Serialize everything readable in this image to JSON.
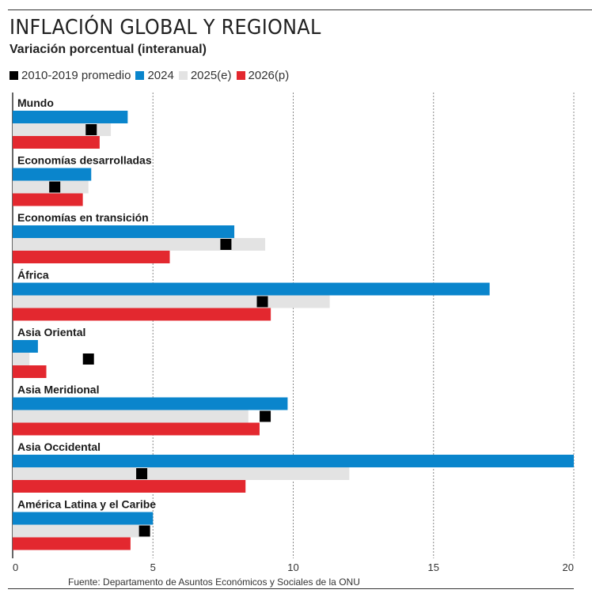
{
  "header": {
    "title": "INFLACIÓN GLOBAL Y REGIONAL",
    "subtitle": "Variación porcentual (interanual)"
  },
  "footer": {
    "source": "Fuente: Departamento de Asuntos Económicos y Sociales de la ONU"
  },
  "chart_data": {
    "type": "bar",
    "orientation": "horizontal",
    "title": "INFLACIÓN GLOBAL Y REGIONAL",
    "subtitle": "Variación porcentual (interanual)",
    "xlabel": "",
    "ylabel": "",
    "xlim": [
      0,
      20
    ],
    "xticks": [
      0,
      5,
      10,
      15,
      20
    ],
    "grid": true,
    "legend_position": "top-left",
    "categories": [
      "Mundo",
      "Economías desarrolladas",
      "Economías en transición",
      "África",
      "Asia Oriental",
      "Asia Meridional",
      "Asia Occidental",
      "América Latina y el Caribe"
    ],
    "series": [
      {
        "name": "2024",
        "color": "#0a85cc",
        "mark": "bar",
        "values": [
          4.1,
          2.8,
          7.9,
          17.0,
          0.9,
          9.8,
          20.0,
          5.0
        ]
      },
      {
        "name": "2025(e)",
        "color": "#e3e3e3",
        "mark": "bar",
        "values": [
          3.5,
          2.7,
          9.0,
          11.3,
          0.6,
          8.4,
          12.0,
          4.9
        ]
      },
      {
        "name": "2026(p)",
        "color": "#e3282f",
        "mark": "bar",
        "values": [
          3.1,
          2.5,
          5.6,
          9.2,
          1.2,
          8.8,
          8.3,
          4.2
        ]
      },
      {
        "name": "2010-2019 promedio",
        "color": "#000000",
        "mark": "square",
        "values": [
          2.8,
          1.5,
          7.6,
          8.9,
          2.7,
          9.0,
          4.6,
          4.7
        ]
      }
    ],
    "legend": [
      {
        "label": "2010-2019 promedio",
        "color": "#000000"
      },
      {
        "label": "2024",
        "color": "#0a85cc"
      },
      {
        "label": "2025(e)",
        "color": "#e3e3e3"
      },
      {
        "label": "2026(p)",
        "color": "#e3282f"
      }
    ]
  }
}
